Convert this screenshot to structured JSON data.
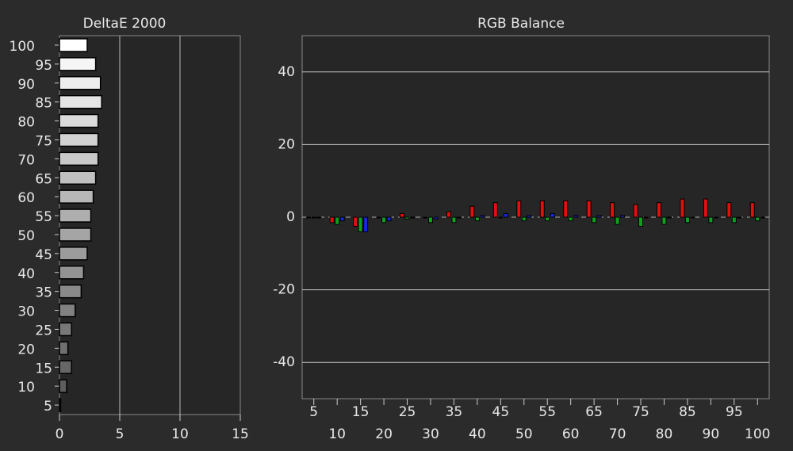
{
  "chart_data": [
    {
      "type": "hbar",
      "title": "DeltaE 2000",
      "categories": [
        100,
        95,
        90,
        85,
        80,
        75,
        70,
        65,
        60,
        55,
        50,
        45,
        40,
        35,
        30,
        25,
        20,
        15,
        10,
        5
      ],
      "values": [
        2.3,
        3.0,
        3.4,
        3.5,
        3.2,
        3.2,
        3.2,
        3.0,
        2.8,
        2.6,
        2.6,
        2.3,
        2.0,
        1.8,
        1.3,
        1.0,
        0.7,
        1.0,
        0.6,
        0.1
      ],
      "xlim": [
        0,
        15
      ],
      "xticks": [
        0,
        5,
        10,
        15
      ],
      "grid": true
    },
    {
      "type": "bar",
      "title": "RGB Balance",
      "categories": [
        5,
        10,
        15,
        20,
        25,
        30,
        35,
        40,
        45,
        50,
        55,
        60,
        65,
        70,
        75,
        80,
        85,
        90,
        95,
        100
      ],
      "series": [
        {
          "name": "Red",
          "color": "#e01010",
          "values": [
            0,
            -1.5,
            -2.5,
            0,
            1,
            0,
            1.5,
            3,
            4,
            4.5,
            4.5,
            4.5,
            4.5,
            4,
            3.5,
            4,
            5,
            5,
            4,
            4
          ]
        },
        {
          "name": "Green",
          "color": "#10a020",
          "values": [
            0,
            -2,
            -4,
            -1.5,
            -0.5,
            -1.5,
            -1.5,
            -1,
            0,
            -1,
            -1,
            -1,
            -1.5,
            -2,
            -2.5,
            -2,
            -1.5,
            -1.5,
            -1.5,
            -1
          ]
        },
        {
          "name": "Blue",
          "color": "#1828e0",
          "values": [
            0,
            -1,
            -4,
            -1,
            0,
            -0.5,
            0,
            0.5,
            1,
            0.5,
            1,
            0.5,
            0.5,
            0.5,
            0,
            0,
            0,
            0,
            0,
            0
          ]
        }
      ],
      "ylim": [
        -50,
        50
      ],
      "yticks": [
        -40,
        -20,
        0,
        20,
        40
      ],
      "grid": true
    }
  ]
}
